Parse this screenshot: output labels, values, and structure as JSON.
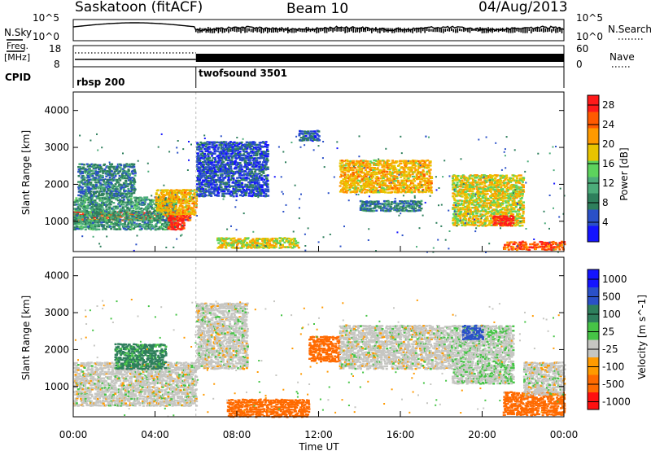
{
  "header": {
    "radar": "Saskatoon (fitACF)",
    "beam": "Beam 10",
    "date": "04/Aug/2013"
  },
  "params": {
    "nsky_label": "N.Sky",
    "nsearch_label": "N.Search",
    "freq_label_1": "Freq.",
    "freq_label_2": "[MHz]",
    "nave_label": "Nave",
    "cpid_label": "CPID",
    "nsky_ticks": [
      "10^5",
      "10^0"
    ],
    "nsearch_ticks": [
      "10^5",
      "10^0"
    ],
    "freq_ticks": [
      "18",
      "8"
    ],
    "nave_ticks": [
      "60",
      "0"
    ],
    "cpid_segments": [
      {
        "label": "rbsp 200",
        "start_hour": 0,
        "end_hour": 6
      },
      {
        "label": "twofsound 3501",
        "start_hour": 6,
        "end_hour": 24
      }
    ]
  },
  "colors": {
    "power": [
      "#1414ff",
      "#2a50c8",
      "#2e7f5c",
      "#4cac7a",
      "#5dd35d",
      "#e8c400",
      "#ff9a00",
      "#ff5a00",
      "#ff1a1a"
    ],
    "velocity": [
      "#1414ff",
      "#2a50c8",
      "#2e7f5c",
      "#46c446",
      "#c6c6c2",
      "#ff9a00",
      "#ff6a00",
      "#ff1010"
    ]
  },
  "chart_data": [
    {
      "type": "heatmap",
      "panel": "power",
      "xlabel": "",
      "ylabel": "Slant Range [km]",
      "x_range_hours": [
        0,
        24
      ],
      "ylim": [
        180,
        4500
      ],
      "yticks": [
        "1000",
        "2000",
        "3000",
        "4000"
      ],
      "colorbar": {
        "label": "Power [dB]",
        "ticks": [
          "4",
          "8",
          "12",
          "16",
          "20",
          "24",
          "28"
        ],
        "range": [
          0,
          30
        ]
      },
      "features": [
        {
          "h0": 0.0,
          "h1": 5.7,
          "r0": 1050,
          "r1": 1300,
          "value": 26
        },
        {
          "h0": 0.0,
          "h1": 5.0,
          "r0": 800,
          "r1": 1700,
          "value": 10
        },
        {
          "h0": 4.0,
          "h1": 6.0,
          "r0": 1200,
          "r1": 1900,
          "value": 20
        },
        {
          "h0": 4.6,
          "h1": 5.4,
          "r0": 800,
          "r1": 1200,
          "value": 28
        },
        {
          "h0": 0.2,
          "h1": 3.0,
          "r0": 1700,
          "r1": 2600,
          "value": 8
        },
        {
          "h0": 6.0,
          "h1": 9.5,
          "r0": 1700,
          "r1": 3200,
          "value": 5
        },
        {
          "h0": 7.0,
          "h1": 11.0,
          "r0": 300,
          "r1": 600,
          "value": 18
        },
        {
          "h0": 13.0,
          "h1": 17.5,
          "r0": 1800,
          "r1": 2700,
          "value": 20
        },
        {
          "h0": 14.0,
          "h1": 17.0,
          "r0": 1300,
          "r1": 1600,
          "value": 8
        },
        {
          "h0": 18.5,
          "h1": 22.0,
          "r0": 900,
          "r1": 2300,
          "value": 18
        },
        {
          "h0": 20.5,
          "h1": 21.5,
          "r0": 900,
          "r1": 1200,
          "value": 28
        },
        {
          "h0": 21.0,
          "h1": 24.0,
          "r0": 250,
          "r1": 500,
          "value": 26
        },
        {
          "h0": 11.0,
          "h1": 12.0,
          "r0": 3200,
          "r1": 3500,
          "value": 6
        }
      ]
    },
    {
      "type": "heatmap",
      "panel": "velocity",
      "xlabel": "Time UT",
      "ylabel": "Slant Range [km]",
      "x_range_hours": [
        0,
        24
      ],
      "xticks": [
        "00:00",
        "04:00",
        "08:00",
        "12:00",
        "16:00",
        "20:00",
        "00:00"
      ],
      "ylim": [
        180,
        4500
      ],
      "yticks": [
        "1000",
        "2000",
        "3000",
        "4000"
      ],
      "colorbar": {
        "label": "Velocity [m s^-1]",
        "ticks": [
          "1000",
          "500",
          "100",
          "25",
          "-25",
          "-100",
          "-500",
          "-1000"
        ]
      },
      "features": [
        {
          "h0": 0.0,
          "h1": 6.0,
          "r0": 500,
          "r1": 1700,
          "value": 0
        },
        {
          "h0": 2.0,
          "h1": 4.5,
          "r0": 1500,
          "r1": 2200,
          "value": 120
        },
        {
          "h0": 6.0,
          "h1": 8.5,
          "r0": 1500,
          "r1": 3300,
          "value": 0
        },
        {
          "h0": 7.5,
          "h1": 11.5,
          "r0": 200,
          "r1": 700,
          "value": -200
        },
        {
          "h0": 11.5,
          "h1": 13.0,
          "r0": 1700,
          "r1": 2400,
          "value": -300
        },
        {
          "h0": 13.0,
          "h1": 18.5,
          "r0": 1500,
          "r1": 2700,
          "value": 0
        },
        {
          "h0": 18.5,
          "h1": 21.5,
          "r0": 1100,
          "r1": 2700,
          "value": 10
        },
        {
          "h0": 19.0,
          "h1": 20.0,
          "r0": 2300,
          "r1": 2700,
          "value": 600
        },
        {
          "h0": 21.0,
          "h1": 24.0,
          "r0": 250,
          "r1": 900,
          "value": -200
        },
        {
          "h0": 22.0,
          "h1": 24.0,
          "r0": 800,
          "r1": 1700,
          "value": 0
        }
      ]
    }
  ]
}
